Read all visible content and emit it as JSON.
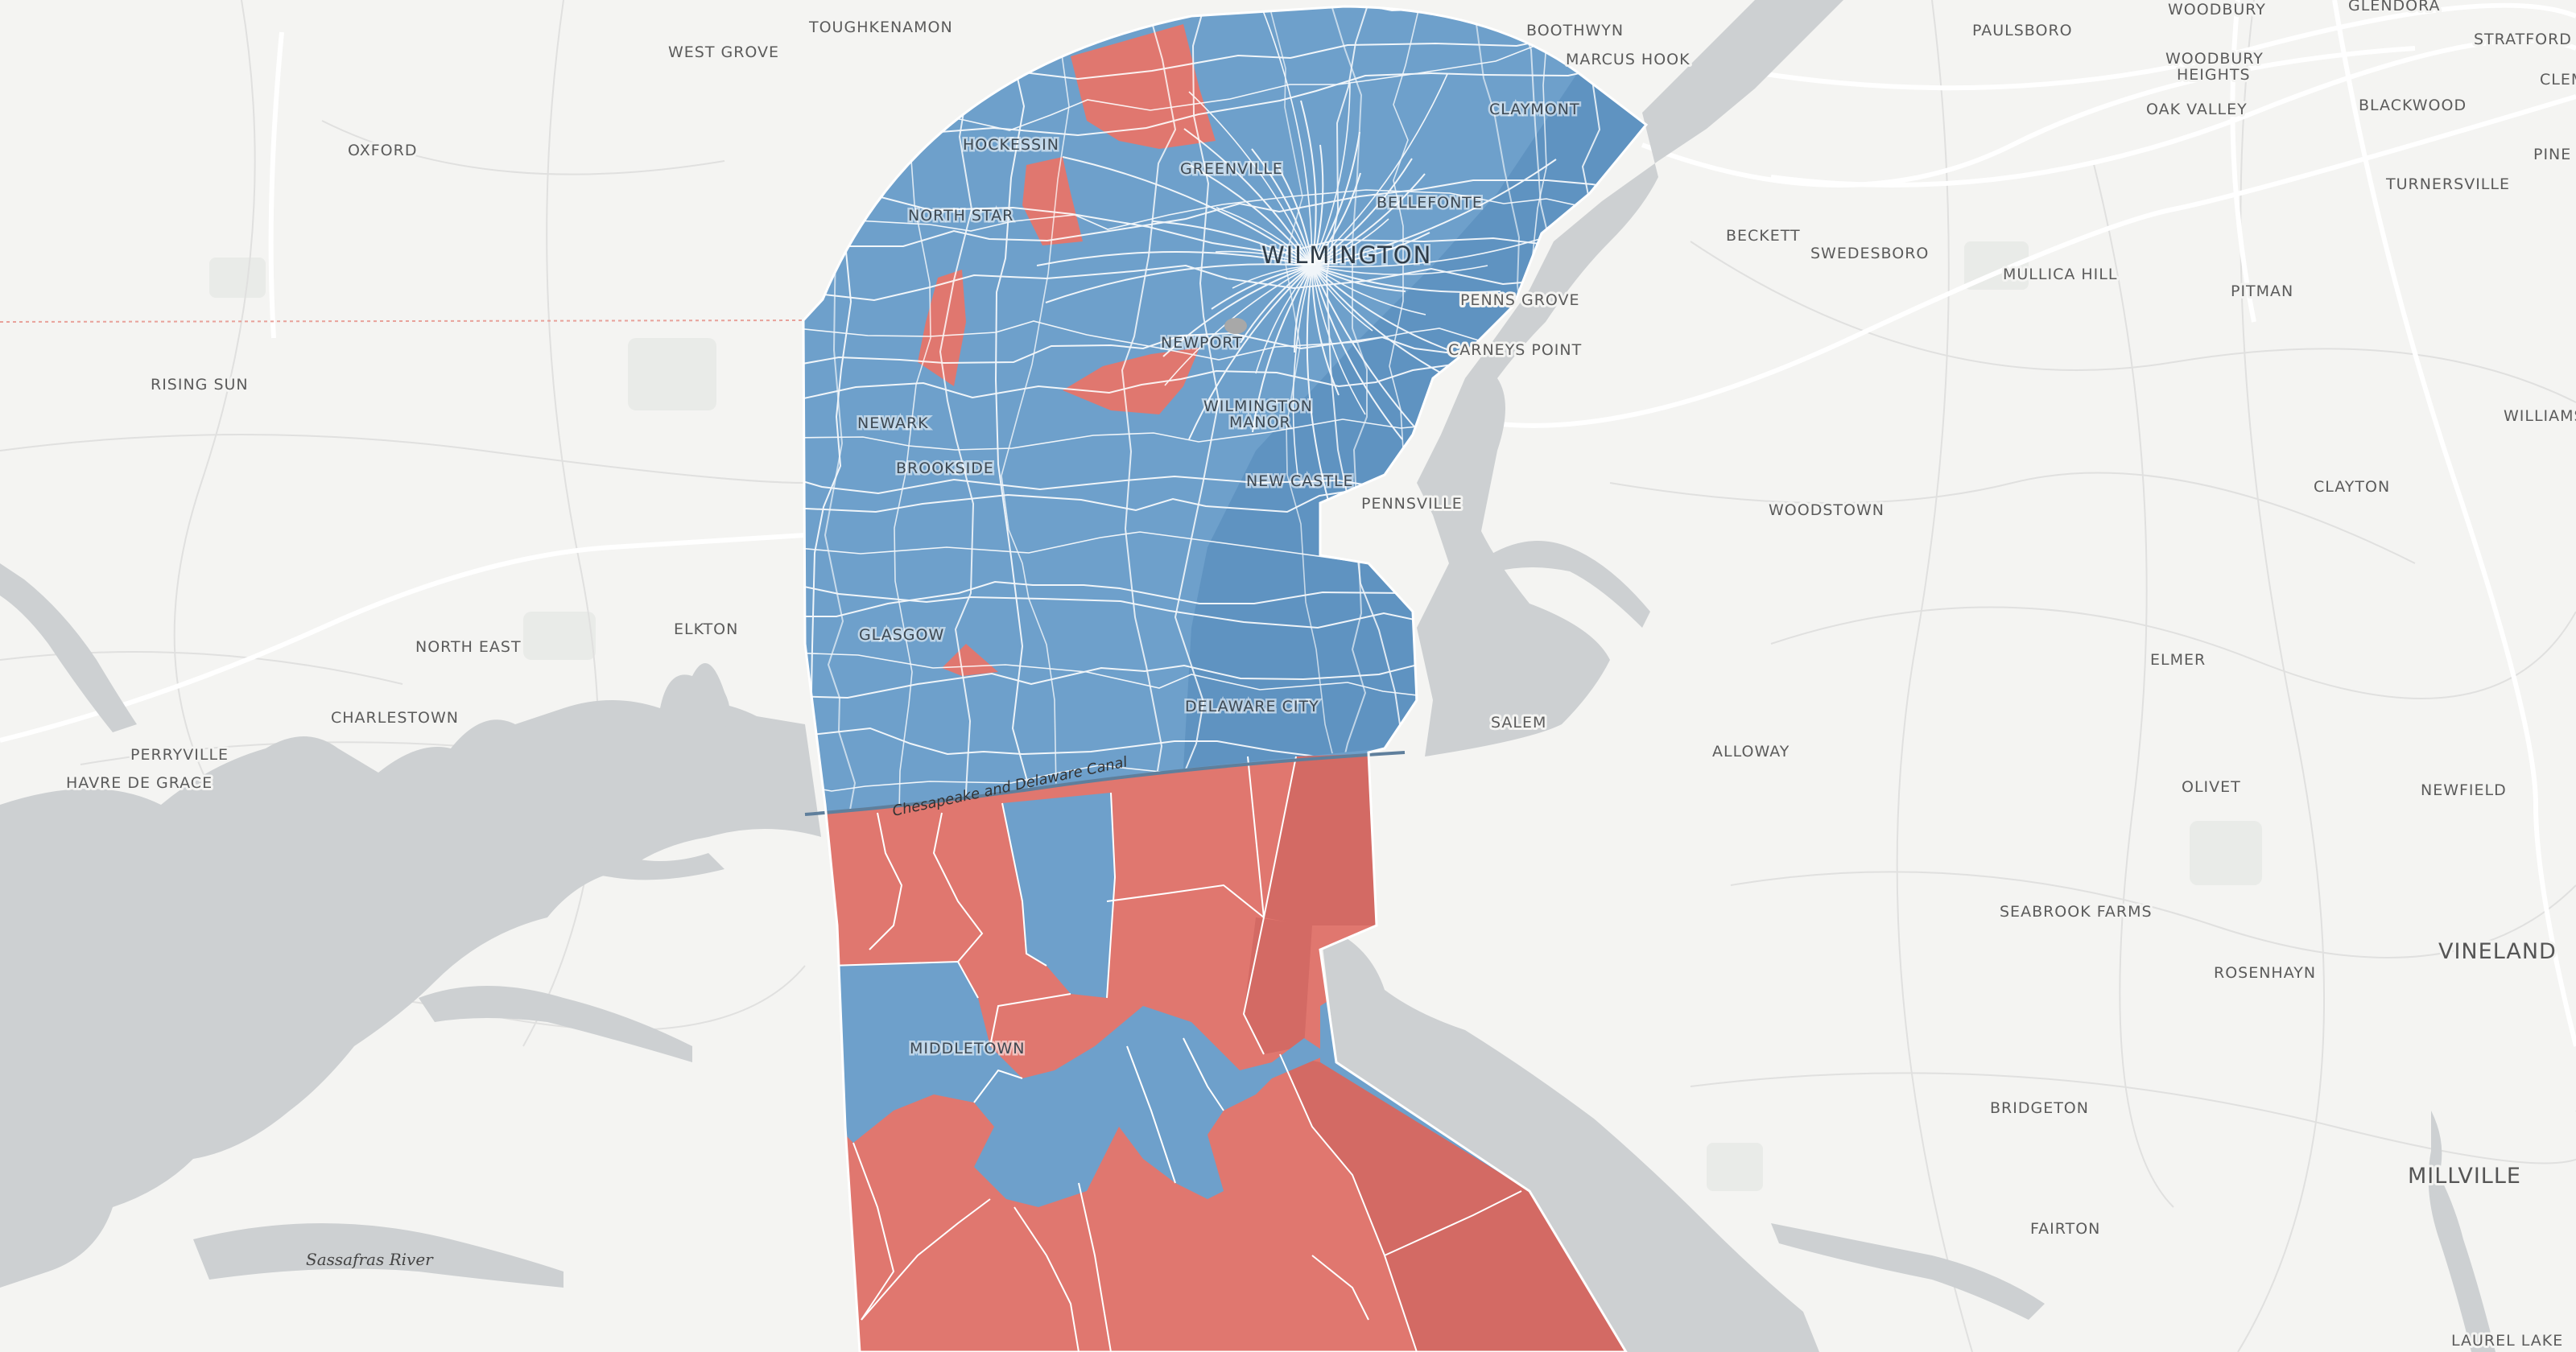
{
  "map": {
    "colors": {
      "land": "#f4f4f2",
      "water": "#cdd0d2",
      "road": "#ffffff",
      "road_minor": "#e2e2e2",
      "democrat": "#6ea0cb",
      "democrat_dark": "#5f93c1",
      "republican": "#e0776f",
      "republican_dark": "#d36a64",
      "precinct_border": "#ffffff",
      "state_border": "#e8a19a"
    },
    "places": [
      {
        "id": "toughkenamon",
        "label": "TOUGHKENAMON"
      },
      {
        "id": "west-grove",
        "label": "WEST GROVE"
      },
      {
        "id": "oxford",
        "label": "OXFORD"
      },
      {
        "id": "rising-sun",
        "label": "RISING SUN"
      },
      {
        "id": "north-east",
        "label": "NORTH EAST"
      },
      {
        "id": "elkton",
        "label": "ELKTON"
      },
      {
        "id": "charlestown",
        "label": "CHARLESTOWN"
      },
      {
        "id": "perryville",
        "label": "PERRYVILLE"
      },
      {
        "id": "havre-de-grace",
        "label": "HAVRE DE GRACE"
      },
      {
        "id": "boothwyn",
        "label": "BOOTHWYN"
      },
      {
        "id": "marcus-hook",
        "label": "MARCUS HOOK"
      },
      {
        "id": "claymont",
        "label": "CLAYMONT"
      },
      {
        "id": "hockessin",
        "label": "HOCKESSIN"
      },
      {
        "id": "greenville",
        "label": "GREENVILLE"
      },
      {
        "id": "north-star",
        "label": "NORTH STAR"
      },
      {
        "id": "bellefonte",
        "label": "BELLEFONTE"
      },
      {
        "id": "wilmington",
        "label": "WILMINGTON"
      },
      {
        "id": "newport",
        "label": "NEWPORT"
      },
      {
        "id": "penns-grove",
        "label": "PENNS GROVE"
      },
      {
        "id": "carneys-point",
        "label": "CARNEYS POINT"
      },
      {
        "id": "wilmington-manor-1",
        "label": "WILMINGTON"
      },
      {
        "id": "wilmington-manor-2",
        "label": "MANOR"
      },
      {
        "id": "newark",
        "label": "NEWARK"
      },
      {
        "id": "brookside",
        "label": "BROOKSIDE"
      },
      {
        "id": "new-castle",
        "label": "NEW CASTLE"
      },
      {
        "id": "pennsville",
        "label": "PENNSVILLE"
      },
      {
        "id": "glasgow",
        "label": "GLASGOW"
      },
      {
        "id": "delaware-city",
        "label": "DELAWARE CITY"
      },
      {
        "id": "salem",
        "label": "SALEM"
      },
      {
        "id": "middletown",
        "label": "MIDDLETOWN"
      },
      {
        "id": "paulsboro",
        "label": "PAULSBORO"
      },
      {
        "id": "woodbury",
        "label": "WOODBURY"
      },
      {
        "id": "woodbury-heights-1",
        "label": "WOODBURY"
      },
      {
        "id": "woodbury-heights-2",
        "label": "HEIGHTS"
      },
      {
        "id": "glendora",
        "label": "GLENDORA"
      },
      {
        "id": "stratford",
        "label": "STRATFORD"
      },
      {
        "id": "clem",
        "label": "CLEM"
      },
      {
        "id": "oak-valley",
        "label": "OAK VALLEY"
      },
      {
        "id": "blackwood",
        "label": "BLACKWOOD"
      },
      {
        "id": "pine-h",
        "label": "PINE H"
      },
      {
        "id": "turnersville",
        "label": "TURNERSVILLE"
      },
      {
        "id": "beckett",
        "label": "BECKETT"
      },
      {
        "id": "swedesboro",
        "label": "SWEDESBORO"
      },
      {
        "id": "mullica-hill",
        "label": "MULLICA HILL"
      },
      {
        "id": "pitman",
        "label": "PITMAN"
      },
      {
        "id": "williams",
        "label": "WILLIAMS"
      },
      {
        "id": "clayton",
        "label": "CLAYTON"
      },
      {
        "id": "woodstown",
        "label": "WOODSTOWN"
      },
      {
        "id": "elmer",
        "label": "ELMER"
      },
      {
        "id": "alloway",
        "label": "ALLOWAY"
      },
      {
        "id": "olivet",
        "label": "OLIVET"
      },
      {
        "id": "newfield",
        "label": "NEWFIELD"
      },
      {
        "id": "seabrook-farms",
        "label": "SEABROOK FARMS"
      },
      {
        "id": "vineland",
        "label": "VINELAND"
      },
      {
        "id": "rosenhayn",
        "label": "ROSENHAYN"
      },
      {
        "id": "bridgeton",
        "label": "BRIDGETON"
      },
      {
        "id": "millville",
        "label": "MILLVILLE"
      },
      {
        "id": "fairton",
        "label": "FAIRTON"
      },
      {
        "id": "laurel-lake",
        "label": "LAUREL LAKE"
      }
    ],
    "water_labels": [
      {
        "id": "sassafras-river",
        "label": "Sassafras River"
      },
      {
        "id": "canal",
        "label": "Chesapeake and Delaware Canal"
      }
    ]
  }
}
